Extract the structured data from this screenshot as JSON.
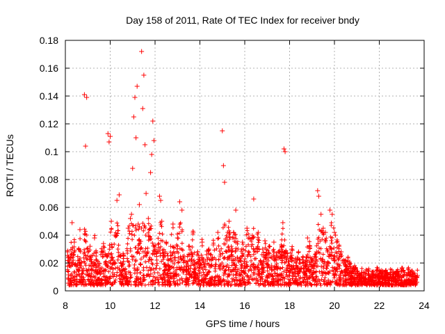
{
  "chart_data": {
    "type": "scatter",
    "title": "Day 158 of 2011, Rate Of TEC Index for receiver bndy",
    "xlabel": "GPS time / hours",
    "ylabel": "ROTI / TECUs",
    "xlim": [
      8,
      24
    ],
    "ylim": [
      0,
      0.18
    ],
    "grid": true,
    "marker": "+",
    "x_ticks": [
      8,
      10,
      12,
      14,
      16,
      18,
      20,
      22,
      24
    ],
    "y_ticks": [
      0,
      0.02,
      0.04,
      0.06,
      0.08,
      0.1,
      0.12,
      0.14,
      0.16,
      0.18
    ],
    "x_tick_labels": [
      "8",
      "10",
      "12",
      "14",
      "16",
      "18",
      "20",
      "22",
      "24"
    ],
    "y_tick_labels": [
      "0",
      "0.02",
      "0.04",
      "0.06",
      "0.08",
      "0.1",
      "0.12",
      "0.14",
      "0.16",
      "0.18"
    ],
    "series": [
      {
        "name": "ROTI",
        "color": "#ff0000",
        "x": [
          8.1,
          8.2,
          8.3,
          8.35,
          8.4,
          8.5,
          8.6,
          8.65,
          8.7,
          8.8,
          8.85,
          8.9,
          8.95,
          9.0,
          9.1,
          9.2,
          9.3,
          9.4,
          9.5,
          9.6,
          9.7,
          9.8,
          9.9,
          9.95,
          10.0,
          10.05,
          10.1,
          10.2,
          10.3,
          10.4,
          10.5,
          10.6,
          10.7,
          10.8,
          10.9,
          10.95,
          11.0,
          11.05,
          11.1,
          11.15,
          11.2,
          11.25,
          11.3,
          11.35,
          11.4,
          11.45,
          11.5,
          11.55,
          11.6,
          11.7,
          11.8,
          11.85,
          11.9,
          11.95,
          12.0,
          12.1,
          12.2,
          12.25,
          12.3,
          12.4,
          12.5,
          12.6,
          12.7,
          12.8,
          12.9,
          13.0,
          13.1,
          13.2,
          13.3,
          13.4,
          13.5,
          13.6,
          13.7,
          13.8,
          13.9,
          14.0,
          14.1,
          14.2,
          14.3,
          14.4,
          14.5,
          14.6,
          14.7,
          14.8,
          14.9,
          15.0,
          15.05,
          15.1,
          15.2,
          15.3,
          15.4,
          15.5,
          15.6,
          15.7,
          15.8,
          15.9,
          16.0,
          16.1,
          16.2,
          16.3,
          16.4,
          16.5,
          16.6,
          16.7,
          16.8,
          16.9,
          17.0,
          17.1,
          17.2,
          17.3,
          17.4,
          17.5,
          17.6,
          17.7,
          17.75,
          17.8,
          17.9,
          18.0,
          18.1,
          18.2,
          18.3,
          18.4,
          18.5,
          18.6,
          18.7,
          18.8,
          18.9,
          19.0,
          19.1,
          19.2,
          19.25,
          19.3,
          19.4,
          19.5,
          19.6,
          19.7,
          19.75,
          19.8,
          19.9,
          20.0,
          20.05,
          20.1,
          20.2,
          20.3,
          20.4,
          20.5,
          20.6,
          20.7,
          20.8,
          20.9,
          21.0,
          21.1,
          21.2,
          21.3,
          21.4,
          21.5,
          21.6,
          21.7,
          21.8,
          21.9,
          22.0,
          22.1,
          22.2,
          22.3,
          22.4,
          22.5,
          22.6,
          22.7,
          22.8,
          22.9,
          23.0,
          23.1,
          23.2,
          23.3,
          23.4,
          23.5,
          23.6,
          23.7
        ],
        "y": [
          0.028,
          0.018,
          0.049,
          0.022,
          0.035,
          0.012,
          0.03,
          0.044,
          0.02,
          0.016,
          0.141,
          0.104,
          0.139,
          0.025,
          0.032,
          0.018,
          0.038,
          0.022,
          0.015,
          0.028,
          0.034,
          0.019,
          0.113,
          0.107,
          0.111,
          0.05,
          0.024,
          0.04,
          0.065,
          0.069,
          0.018,
          0.025,
          0.012,
          0.045,
          0.052,
          0.055,
          0.088,
          0.125,
          0.139,
          0.11,
          0.147,
          0.048,
          0.062,
          0.03,
          0.172,
          0.131,
          0.155,
          0.105,
          0.07,
          0.052,
          0.085,
          0.098,
          0.122,
          0.108,
          0.03,
          0.028,
          0.068,
          0.065,
          0.05,
          0.025,
          0.035,
          0.018,
          0.032,
          0.048,
          0.022,
          0.038,
          0.064,
          0.058,
          0.025,
          0.018,
          0.032,
          0.022,
          0.042,
          0.016,
          0.028,
          0.02,
          0.035,
          0.017,
          0.026,
          0.03,
          0.022,
          0.033,
          0.019,
          0.042,
          0.025,
          0.115,
          0.09,
          0.078,
          0.036,
          0.05,
          0.028,
          0.042,
          0.058,
          0.03,
          0.022,
          0.035,
          0.018,
          0.045,
          0.038,
          0.032,
          0.066,
          0.028,
          0.042,
          0.02,
          0.03,
          0.036,
          0.024,
          0.032,
          0.018,
          0.035,
          0.022,
          0.028,
          0.025,
          0.049,
          0.102,
          0.1,
          0.025,
          0.018,
          0.03,
          0.022,
          0.02,
          0.028,
          0.016,
          0.024,
          0.018,
          0.038,
          0.032,
          0.022,
          0.02,
          0.028,
          0.072,
          0.068,
          0.055,
          0.045,
          0.042,
          0.028,
          0.025,
          0.058,
          0.055,
          0.042,
          0.04,
          0.035,
          0.032,
          0.028,
          0.02,
          0.018,
          0.022,
          0.016,
          0.014,
          0.015,
          0.012,
          0.01,
          0.013,
          0.009,
          0.011,
          0.014,
          0.008,
          0.012,
          0.007,
          0.015,
          0.01,
          0.012,
          0.009,
          0.011,
          0.008,
          0.013,
          0.01,
          0.009,
          0.012,
          0.01,
          0.014,
          0.011,
          0.008,
          0.013,
          0.012,
          0.01,
          0.009,
          0.011
        ]
      }
    ]
  }
}
